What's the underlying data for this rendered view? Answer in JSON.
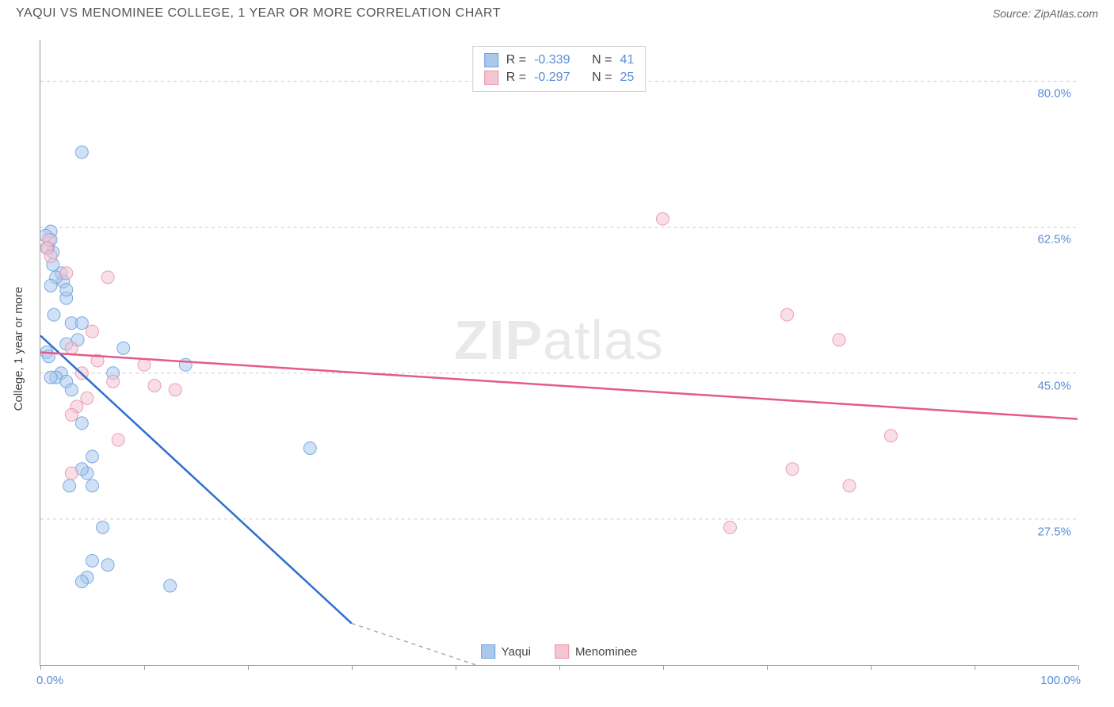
{
  "title": "YAQUI VS MENOMINEE COLLEGE, 1 YEAR OR MORE CORRELATION CHART",
  "source": "Source: ZipAtlas.com",
  "watermark_a": "ZIP",
  "watermark_b": "atlas",
  "chart": {
    "type": "scatter",
    "yaxis_title": "College, 1 year or more",
    "xlim": [
      0,
      100
    ],
    "ylim": [
      10,
      85
    ],
    "yticks": [
      27.5,
      45.0,
      62.5,
      80.0
    ],
    "ytick_labels": [
      "27.5%",
      "45.0%",
      "62.5%",
      "80.0%"
    ],
    "xaxis_min_label": "0.0%",
    "xaxis_max_label": "100.0%",
    "xticks": [
      0,
      10,
      20,
      30,
      40,
      50,
      60,
      70,
      80,
      90,
      100
    ],
    "grid_color": "#cccccc",
    "axis_color": "#999999",
    "marker_radius": 8,
    "marker_opacity": 0.55,
    "marker_stroke_opacity": 0.9,
    "line_width": 2.5,
    "series": [
      {
        "name": "Yaqui",
        "color_fill": "#a9c8ec",
        "color_stroke": "#6fa3de",
        "line_color": "#2e6fd1",
        "R": "-0.339",
        "N": "41",
        "regression": {
          "x1": 0,
          "y1": 49.5,
          "x2": 30,
          "y2": 15,
          "dash_after_x": 30,
          "dash_to_x": 42,
          "dash_to_y": 0
        },
        "points": [
          [
            1.0,
            62.0
          ],
          [
            1.2,
            59.5
          ],
          [
            1.0,
            61.0
          ],
          [
            0.6,
            47.5
          ],
          [
            0.8,
            47.0
          ],
          [
            2.0,
            57.0
          ],
          [
            2.2,
            56.0
          ],
          [
            2.5,
            54.0
          ],
          [
            1.3,
            52.0
          ],
          [
            3.0,
            51.0
          ],
          [
            4.0,
            51.0
          ],
          [
            3.6,
            49.0
          ],
          [
            2.5,
            48.5
          ],
          [
            8.0,
            48.0
          ],
          [
            2.0,
            45.0
          ],
          [
            1.5,
            44.5
          ],
          [
            1.0,
            44.5
          ],
          [
            2.5,
            44.0
          ],
          [
            3.0,
            43.0
          ],
          [
            7.0,
            45.0
          ],
          [
            14.0,
            46.0
          ],
          [
            4.0,
            39.0
          ],
          [
            5.0,
            35.0
          ],
          [
            4.5,
            33.0
          ],
          [
            4.0,
            33.5
          ],
          [
            5.0,
            31.5
          ],
          [
            26.0,
            36.0
          ],
          [
            6.0,
            26.5
          ],
          [
            5.0,
            22.5
          ],
          [
            6.5,
            22.0
          ],
          [
            4.5,
            20.5
          ],
          [
            4.0,
            20.0
          ],
          [
            12.5,
            19.5
          ],
          [
            4.0,
            71.5
          ],
          [
            1.5,
            56.5
          ],
          [
            2.5,
            55.0
          ],
          [
            1.0,
            55.5
          ],
          [
            2.8,
            31.5
          ],
          [
            0.7,
            60.0
          ],
          [
            1.2,
            58.0
          ],
          [
            0.5,
            61.5
          ]
        ]
      },
      {
        "name": "Menominee",
        "color_fill": "#f3c5d1",
        "color_stroke": "#e995ac",
        "line_color": "#e55a87",
        "R": "-0.297",
        "N": "25",
        "regression": {
          "x1": 0,
          "y1": 47.5,
          "x2": 100,
          "y2": 39.5
        },
        "points": [
          [
            0.8,
            61.0
          ],
          [
            0.6,
            60.0
          ],
          [
            1.0,
            59.0
          ],
          [
            2.5,
            57.0
          ],
          [
            6.5,
            56.5
          ],
          [
            5.0,
            50.0
          ],
          [
            3.0,
            48.0
          ],
          [
            5.5,
            46.5
          ],
          [
            10.0,
            46.0
          ],
          [
            4.0,
            45.0
          ],
          [
            4.5,
            42.0
          ],
          [
            7.0,
            44.0
          ],
          [
            11.0,
            43.5
          ],
          [
            13.0,
            43.0
          ],
          [
            3.5,
            41.0
          ],
          [
            3.0,
            40.0
          ],
          [
            7.5,
            37.0
          ],
          [
            3.0,
            33.0
          ],
          [
            60.0,
            63.5
          ],
          [
            72.0,
            52.0
          ],
          [
            77.0,
            49.0
          ],
          [
            72.5,
            33.5
          ],
          [
            78.0,
            31.5
          ],
          [
            82.0,
            37.5
          ],
          [
            66.5,
            26.5
          ]
        ]
      }
    ]
  },
  "legend_bottom": [
    {
      "label": "Yaqui",
      "fill": "#a9c8ec",
      "stroke": "#6fa3de"
    },
    {
      "label": "Menominee",
      "fill": "#f3c5d1",
      "stroke": "#e995ac"
    }
  ],
  "yaxis_label_color": "#5b8dd6",
  "title_color": "#555555",
  "title_fontsize": 16,
  "background_color": "#ffffff"
}
